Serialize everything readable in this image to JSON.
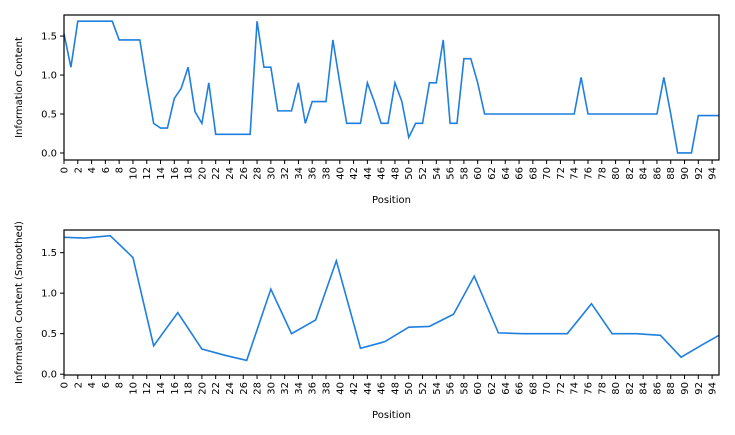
{
  "chart_data": [
    {
      "type": "line",
      "xlabel": "Position",
      "ylabel": "Information Content",
      "color": "#1f7fe0",
      "x": [
        0,
        1,
        2,
        3,
        4,
        5,
        6,
        7,
        8,
        9,
        10,
        11,
        12,
        13,
        14,
        15,
        16,
        17,
        18,
        19,
        20,
        21,
        22,
        23,
        24,
        25,
        26,
        27,
        28,
        29,
        30,
        31,
        32,
        33,
        34,
        35,
        36,
        37,
        38,
        39,
        40,
        41,
        42,
        43,
        44,
        45,
        46,
        47,
        48,
        49,
        50,
        51,
        52,
        53,
        54,
        55,
        56,
        57,
        58,
        59,
        60,
        61,
        62,
        63,
        64,
        65,
        66,
        67,
        68,
        69,
        70,
        71,
        72,
        73,
        74,
        75,
        76,
        77,
        78,
        79,
        80,
        81,
        82,
        83,
        84,
        85,
        86,
        87,
        88,
        89,
        90,
        91,
        92,
        93,
        94,
        95
      ],
      "values": [
        1.53,
        1.1,
        1.69,
        1.69,
        1.69,
        1.69,
        1.69,
        1.69,
        1.45,
        1.45,
        1.45,
        1.45,
        0.9,
        0.38,
        0.32,
        0.32,
        0.7,
        0.83,
        1.1,
        0.53,
        0.38,
        0.9,
        0.24,
        0.24,
        0.24,
        0.24,
        0.24,
        0.24,
        1.69,
        1.1,
        1.1,
        0.54,
        0.54,
        0.54,
        0.9,
        0.38,
        0.66,
        0.66,
        0.66,
        1.45,
        0.9,
        0.38,
        0.38,
        0.38,
        0.9,
        0.66,
        0.38,
        0.38,
        0.9,
        0.66,
        0.2,
        0.38,
        0.38,
        0.9,
        0.9,
        1.45,
        0.38,
        0.38,
        1.21,
        1.21,
        0.9,
        0.5,
        0.5,
        0.5,
        0.5,
        0.5,
        0.5,
        0.5,
        0.5,
        0.5,
        0.5,
        0.5,
        0.5,
        0.5,
        0.5,
        0.97,
        0.5,
        0.5,
        0.5,
        0.5,
        0.5,
        0.5,
        0.5,
        0.5,
        0.5,
        0.5,
        0.5,
        0.97,
        0.5,
        0,
        0,
        0,
        0.48,
        0.48,
        0.48,
        0.48
      ],
      "xlim": [
        0,
        95
      ],
      "ylim": [
        -0.09,
        1.77
      ],
      "xticks": [
        0,
        2,
        4,
        6,
        8,
        10,
        12,
        14,
        16,
        18,
        20,
        22,
        24,
        26,
        28,
        30,
        32,
        34,
        36,
        38,
        40,
        42,
        44,
        46,
        48,
        50,
        52,
        54,
        56,
        58,
        60,
        62,
        64,
        66,
        68,
        70,
        72,
        74,
        76,
        78,
        80,
        82,
        84,
        86,
        88,
        90,
        92,
        94
      ],
      "yticks": [
        {
          "value": 0,
          "label": "0.0"
        },
        0.5,
        {
          "value": 1,
          "label": "1.0"
        },
        1.5
      ]
    },
    {
      "type": "line",
      "xlabel": "Position",
      "ylabel": "Information Content (Smoothed)",
      "color": "#1f7fe0",
      "x": [
        0,
        3,
        6.7,
        10,
        13,
        16.5,
        20,
        23.5,
        26.5,
        30,
        33,
        36.5,
        39.5,
        43,
        46.5,
        50,
        53,
        56.5,
        59.5,
        63,
        66.5,
        73,
        76.5,
        79.5,
        83,
        86.5,
        89.5,
        92.5,
        95
      ],
      "values": [
        1.69,
        1.68,
        1.71,
        1.44,
        0.35,
        0.76,
        0.31,
        0.23,
        0.17,
        1.05,
        0.5,
        0.67,
        1.4,
        0.32,
        0.4,
        0.58,
        0.59,
        0.74,
        1.21,
        0.51,
        0.5,
        0.5,
        0.87,
        0.5,
        0.5,
        0.48,
        0.21,
        0.36,
        0.48
      ],
      "xlim": [
        0,
        95
      ],
      "ylim": [
        -0.01,
        1.78
      ],
      "xticks": [
        0,
        2,
        4,
        6,
        8,
        10,
        12,
        14,
        16,
        18,
        20,
        22,
        24,
        26,
        28,
        30,
        32,
        34,
        36,
        38,
        40,
        42,
        44,
        46,
        48,
        50,
        52,
        54,
        56,
        58,
        60,
        62,
        64,
        66,
        68,
        70,
        72,
        74,
        76,
        78,
        80,
        82,
        84,
        86,
        88,
        90,
        92,
        94
      ],
      "yticks": [
        {
          "value": 0,
          "label": "0.0"
        },
        0.5,
        {
          "value": 1,
          "label": "1.0"
        },
        1.5
      ]
    }
  ]
}
